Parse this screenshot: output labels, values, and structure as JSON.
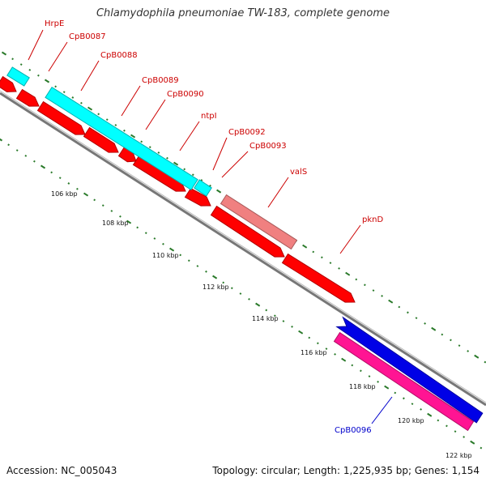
{
  "title": "Chlamydophila pneumoniae TW-183, complete genome",
  "footer": {
    "accession": "Accession: NC_005043",
    "summary": "Topology: circular; Length: 1,225,935 bp; Genes: 1,154"
  },
  "colors": {
    "cds_reverse": "#ff0000",
    "cds_forward": "#0000e6",
    "rna": "#00ffff",
    "pseudo_pink": "#ff1493",
    "salmon": "#f08080",
    "backbone": "#888888",
    "ticks": "#2a7a2a",
    "label_red": "#cc0000",
    "label_blue": "#0000cc"
  },
  "tick_labels": [
    "106 kbp",
    "108 kbp",
    "110 kbp",
    "112 kbp",
    "114 kbp",
    "116 kbp",
    "118 kbp",
    "120 kbp",
    "122 kbp"
  ],
  "gene_labels": [
    {
      "name": "HrpE",
      "color": "red"
    },
    {
      "name": "CpB0087",
      "color": "red"
    },
    {
      "name": "CpB0088",
      "color": "red"
    },
    {
      "name": "CpB0089",
      "color": "red"
    },
    {
      "name": "CpB0090",
      "color": "red"
    },
    {
      "name": "ntpI",
      "color": "red"
    },
    {
      "name": "CpB0092",
      "color": "red"
    },
    {
      "name": "CpB0093",
      "color": "red"
    },
    {
      "name": "valS",
      "color": "red"
    },
    {
      "name": "pknD",
      "color": "red"
    },
    {
      "name": "CpB0096",
      "color": "blue"
    }
  ]
}
